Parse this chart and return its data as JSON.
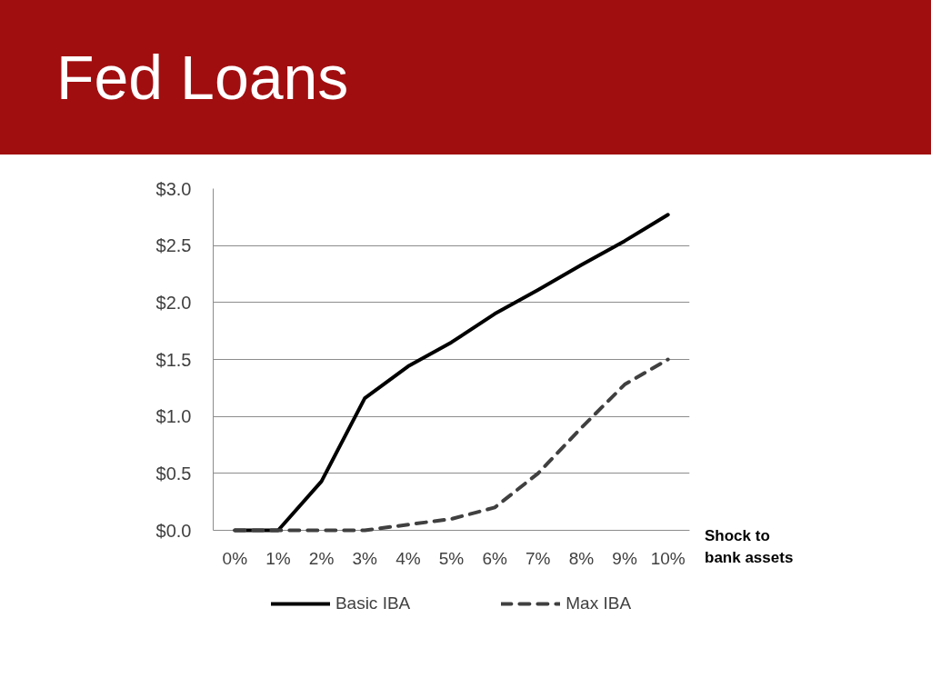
{
  "chart_data": {
    "type": "line",
    "title": "Fed Loans",
    "xlabel": "Shock to bank assets",
    "categories": [
      "0%",
      "1%",
      "2%",
      "3%",
      "4%",
      "5%",
      "6%",
      "7%",
      "8%",
      "9%",
      "10%"
    ],
    "series": [
      {
        "name": "Basic IBA",
        "color": "#000000",
        "line_style": "solid",
        "values": [
          0,
          0,
          0.43,
          1.16,
          1.44,
          1.65,
          1.9,
          2.11,
          2.33,
          2.54,
          2.77
        ]
      },
      {
        "name": "Max IBA",
        "color": "#404040",
        "line_style": "dashed",
        "values": [
          0,
          0,
          0,
          0,
          0.05,
          0.1,
          0.2,
          0.5,
          0.9,
          1.28,
          1.5
        ]
      }
    ],
    "ylim": [
      0,
      3
    ],
    "yticks": [
      {
        "value": 0,
        "label": "$0.0"
      },
      {
        "value": 0.5,
        "label": "$0.5"
      },
      {
        "value": 1,
        "label": "$1.0"
      },
      {
        "value": 1.5,
        "label": "$1.5"
      },
      {
        "value": 2,
        "label": "$2.0"
      },
      {
        "value": 2.5,
        "label": "$2.5"
      },
      {
        "value": 3,
        "label": "$3.0"
      }
    ],
    "grid": "y",
    "legend": "bottom"
  }
}
